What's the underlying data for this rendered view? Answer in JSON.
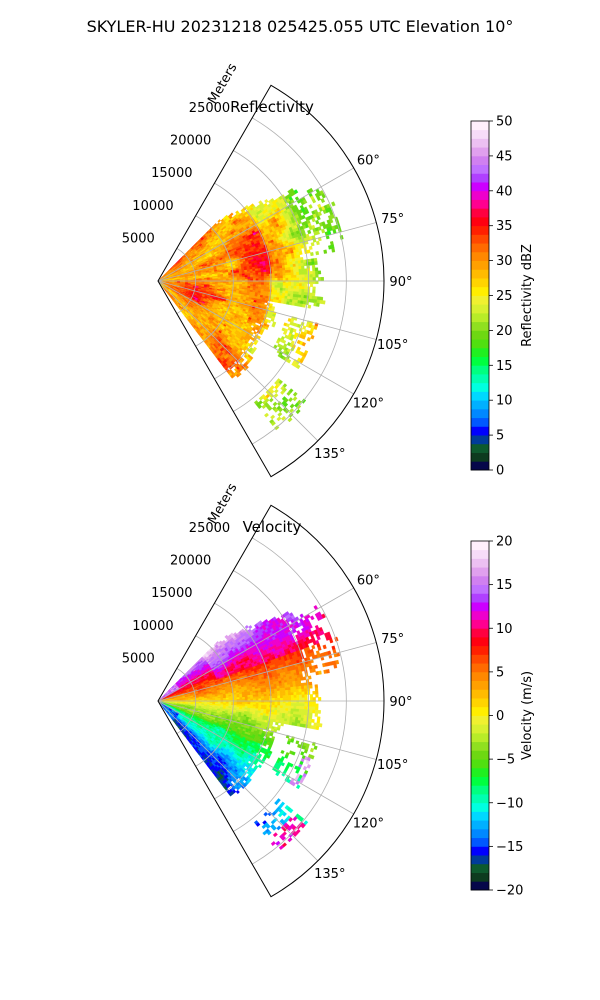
{
  "figure": {
    "title": "SKYLER-HU  20231218  025425.055 UTC Elevation 10°"
  },
  "chart_data": [
    {
      "type": "heatmap",
      "projection": "polar-sector",
      "title": "Reflectivity",
      "radial_label": "Meters",
      "radial_ticks": [
        "5000",
        "10000",
        "15000",
        "20000",
        "25000"
      ],
      "radial_tick_values": [
        5000,
        10000,
        15000,
        20000,
        25000
      ],
      "r_max": 30000,
      "theta_range_deg": [
        30,
        150
      ],
      "theta_ticks": [
        "60°",
        "75°",
        "90°",
        "105°",
        "120°",
        "135°"
      ],
      "theta_tick_values": [
        60,
        75,
        90,
        105,
        120,
        135
      ],
      "echo_azimuth_range_deg": [
        45,
        142
      ],
      "grid": true,
      "colorbar": {
        "label": "Reflectivity dBZ",
        "min": 0,
        "max": 50,
        "ticks": [
          "0",
          "5",
          "10",
          "15",
          "20",
          "25",
          "30",
          "35",
          "40",
          "45",
          "50"
        ],
        "tick_values": [
          0,
          5,
          10,
          15,
          20,
          25,
          30,
          35,
          40,
          45,
          50
        ],
        "colors": [
          "#06074a",
          "#0d3b1f",
          "#0d5a2e",
          "#003c9a",
          "#0000ff",
          "#0058ff",
          "#0088ff",
          "#00b0ff",
          "#00d8ff",
          "#00ffe0",
          "#00ffb0",
          "#00ff80",
          "#00ff40",
          "#20f020",
          "#50e010",
          "#6ed812",
          "#90e020",
          "#b8ec28",
          "#d8f030",
          "#f0f030",
          "#ffee00",
          "#ffd400",
          "#ffbb00",
          "#ffa000",
          "#ff8800",
          "#ff6a00",
          "#ff4800",
          "#ff2000",
          "#ff0010",
          "#ff0040",
          "#ff0090",
          "#ee00cc",
          "#cc00ff",
          "#b040ff",
          "#c070ff",
          "#d080f0",
          "#e0a0ee",
          "#ecc0f2",
          "#f6dcf8",
          "#fff0fc"
        ]
      },
      "field_description": "Reflectivity mostly 20–35 dBZ: red cores (30–36 dBZ) near the radar and in bands at 95–115°, yellow/orange 25–30 dBZ across the sector, green 18–22 dBZ along the outer edge and scattered beyond."
    },
    {
      "type": "heatmap",
      "projection": "polar-sector",
      "title": "Velocity",
      "radial_label": "Meters",
      "radial_ticks": [
        "5000",
        "10000",
        "15000",
        "20000",
        "25000"
      ],
      "radial_tick_values": [
        5000,
        10000,
        15000,
        20000,
        25000
      ],
      "r_max": 30000,
      "theta_range_deg": [
        30,
        150
      ],
      "theta_ticks": [
        "60°",
        "75°",
        "90°",
        "105°",
        "120°",
        "135°"
      ],
      "theta_tick_values": [
        60,
        75,
        90,
        105,
        120,
        135
      ],
      "echo_azimuth_range_deg": [
        45,
        142
      ],
      "grid": true,
      "colorbar": {
        "label": "Velocity (m/s)",
        "min": -20,
        "max": 20,
        "ticks": [
          "−20",
          "−15",
          "−10",
          "−5",
          "0",
          "5",
          "10",
          "15",
          "20"
        ],
        "tick_values": [
          -20,
          -15,
          -10,
          -5,
          0,
          5,
          10,
          15,
          20
        ],
        "colors": [
          "#06074a",
          "#0d3b1f",
          "#0d5a2e",
          "#003c9a",
          "#0000ff",
          "#0058ff",
          "#0088ff",
          "#00b0ff",
          "#00d8ff",
          "#00ffe0",
          "#00ffb0",
          "#00ff80",
          "#00ff40",
          "#20f020",
          "#50e010",
          "#6ed812",
          "#90e020",
          "#b8ec28",
          "#d8f030",
          "#f0f030",
          "#ffee00",
          "#ffd400",
          "#ffbb00",
          "#ffa000",
          "#ff8800",
          "#ff6a00",
          "#ff4800",
          "#ff2000",
          "#ff0010",
          "#ff0040",
          "#ff0090",
          "#ee00cc",
          "#cc00ff",
          "#b040ff",
          "#c070ff",
          "#d080f0",
          "#e0a0ee",
          "#ecc0f2",
          "#f6dcf8",
          "#fff0fc"
        ]
      },
      "field_description": "Doppler velocity: positive (+5 to +12 m/s, orange–red) at azimuths 45–80°, near 0 m/s (yellow-green) around 85–100°, negative (−5 to −14 m/s, green to cyan) at 105–140°, with magenta/blue folded pixels near the origin and in scattered outer echoes."
    }
  ]
}
